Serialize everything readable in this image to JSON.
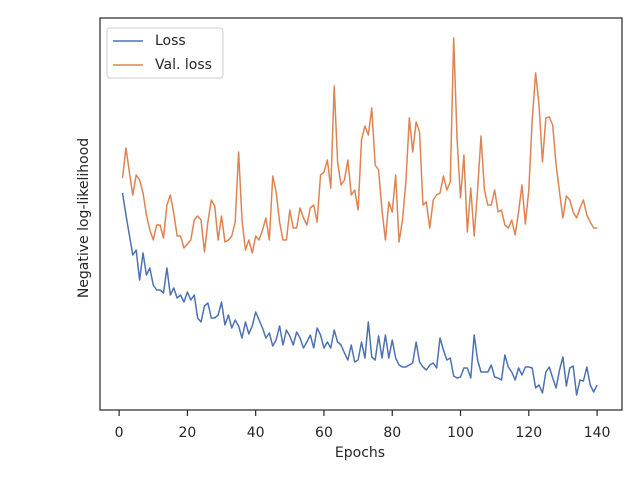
{
  "chart_data": {
    "type": "line",
    "xlabel": "Epochs",
    "ylabel": "Negative log-likelihood",
    "x": [
      1,
      2,
      3,
      4,
      5,
      6,
      7,
      8,
      9,
      10,
      11,
      12,
      13,
      14,
      15,
      16,
      17,
      18,
      19,
      20,
      21,
      22,
      23,
      24,
      25,
      26,
      27,
      28,
      29,
      30,
      31,
      32,
      33,
      34,
      35,
      36,
      37,
      38,
      39,
      40,
      41,
      42,
      43,
      44,
      45,
      46,
      47,
      48,
      49,
      50,
      51,
      52,
      53,
      54,
      55,
      56,
      57,
      58,
      59,
      60,
      61,
      62,
      63,
      64,
      65,
      66,
      67,
      68,
      69,
      70,
      71,
      72,
      73,
      74,
      75,
      76,
      77,
      78,
      79,
      80,
      81,
      82,
      83,
      84,
      85,
      86,
      87,
      88,
      89,
      90,
      91,
      92,
      93,
      94,
      95,
      96,
      97,
      98,
      99,
      100,
      101,
      102,
      103,
      104,
      105,
      106,
      107,
      108,
      109,
      110,
      111,
      112,
      113,
      114,
      115,
      116,
      117,
      118,
      119,
      120,
      121,
      122,
      123,
      124,
      125,
      126,
      127,
      128,
      129,
      130,
      131,
      132,
      133,
      134,
      135,
      136,
      137,
      138,
      139,
      140
    ],
    "series": [
      {
        "name": "Loss",
        "color": "#4c72b0",
        "values": [
          217,
          195,
          175,
          155,
          160,
          130,
          157,
          135,
          142,
          125,
          120,
          120,
          117,
          142,
          115,
          122,
          112,
          115,
          108,
          118,
          110,
          115,
          92,
          88,
          104,
          107,
          92,
          92,
          95,
          108,
          85,
          95,
          82,
          90,
          84,
          72,
          88,
          76,
          84,
          98,
          90,
          82,
          72,
          77,
          64,
          70,
          84,
          65,
          80,
          74,
          65,
          78,
          72,
          62,
          68,
          75,
          62,
          82,
          75,
          62,
          68,
          62,
          80,
          68,
          65,
          57,
          50,
          65,
          48,
          50,
          68,
          52,
          88,
          53,
          50,
          74,
          52,
          75,
          52,
          70,
          52,
          45,
          43,
          43,
          45,
          47,
          68,
          48,
          43,
          40,
          45,
          47,
          42,
          72,
          60,
          50,
          52,
          34,
          32,
          33,
          42,
          42,
          32,
          75,
          50,
          38,
          38,
          38,
          45,
          33,
          32,
          30,
          55,
          43,
          38,
          30,
          42,
          35,
          43,
          43,
          42,
          22,
          25,
          17,
          38,
          43,
          32,
          22,
          40,
          53,
          24,
          42,
          44,
          15,
          30,
          29,
          43,
          25,
          18,
          25
        ]
      },
      {
        "name": "Val. loss",
        "color": "#dd8452",
        "values": [
          232,
          262,
          238,
          215,
          235,
          230,
          217,
          195,
          180,
          170,
          185,
          185,
          172,
          205,
          215,
          197,
          174,
          174,
          162,
          166,
          170,
          190,
          194,
          190,
          158,
          188,
          210,
          204,
          170,
          194,
          168,
          170,
          174,
          188,
          258,
          190,
          160,
          170,
          157,
          174,
          170,
          180,
          192,
          170,
          234,
          218,
          188,
          170,
          170,
          200,
          182,
          182,
          202,
          192,
          185,
          202,
          205,
          188,
          235,
          238,
          250,
          222,
          324,
          248,
          225,
          230,
          250,
          215,
          220,
          200,
          270,
          284,
          275,
          302,
          245,
          240,
          200,
          170,
          208,
          198,
          235,
          168,
          190,
          228,
          292,
          258,
          288,
          278,
          205,
          208,
          182,
          210,
          215,
          217,
          234,
          220,
          228,
          372,
          270,
          212,
          255,
          178,
          222,
          174,
          220,
          274,
          220,
          205,
          205,
          220,
          198,
          200,
          185,
          182,
          190,
          175,
          198,
          225,
          186,
          220,
          290,
          337,
          305,
          248,
          292,
          293,
          285,
          245,
          218,
          192,
          214,
          210,
          198,
          192,
          202,
          210,
          195,
          188,
          182,
          182
        ]
      }
    ],
    "xlim": [
      -5.6,
      147.3
    ],
    "xticks": [
      0,
      20,
      40,
      60,
      80,
      100,
      120,
      140
    ],
    "ylim": [
      0,
      392
    ],
    "legend": "upper left"
  }
}
